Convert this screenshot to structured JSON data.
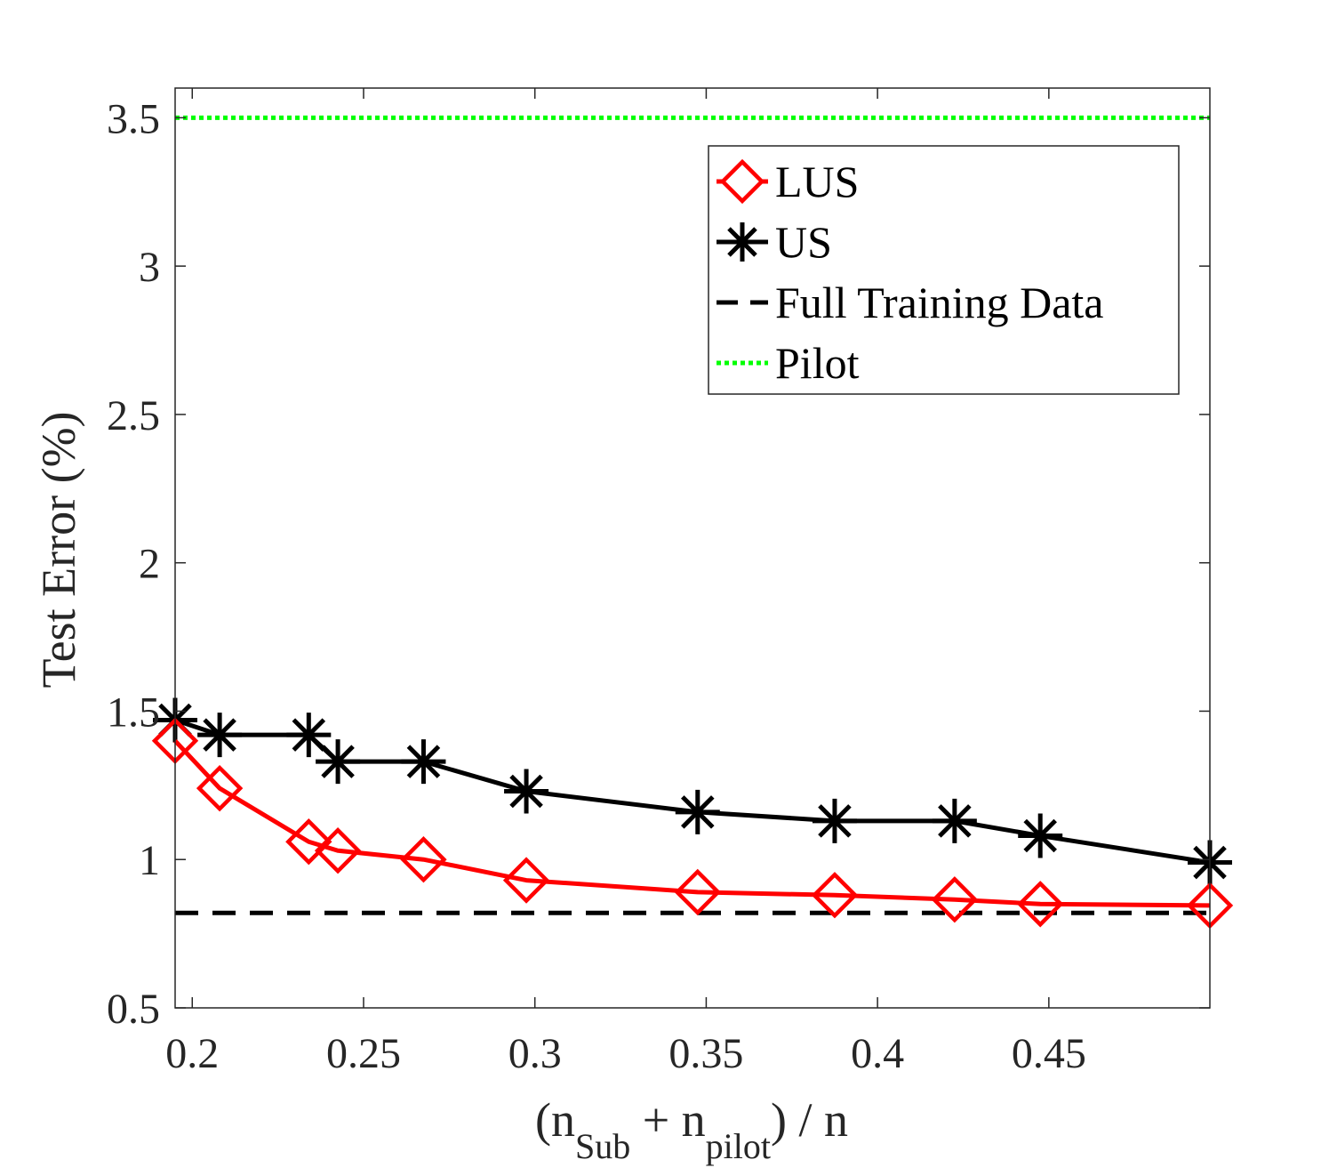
{
  "chart_data": {
    "type": "line",
    "title": "",
    "xlabel": {
      "open": "(n",
      "sub1": "Sub",
      "plus": " + n",
      "sub2": "pilot",
      "close": ") / n"
    },
    "ylabel": "Test Error (%)",
    "xlim": [
      0.195,
      0.497
    ],
    "ylim": [
      0.5,
      3.6
    ],
    "xticks": [
      0.2,
      0.25,
      0.3,
      0.35,
      0.4,
      0.45
    ],
    "xtick_labels": [
      "0.2",
      "0.25",
      "0.3",
      "0.35",
      "0.4",
      "0.45"
    ],
    "yticks": [
      0.5,
      1,
      1.5,
      2,
      2.5,
      3,
      3.5
    ],
    "ytick_labels": [
      "0.5",
      "1",
      "1.5",
      "2",
      "2.5",
      "3",
      "3.5"
    ],
    "legend_position": "top-right",
    "series": [
      {
        "name": "LUS",
        "style": "solid",
        "marker": "diamond",
        "color": "#ff0000",
        "x": [
          0.195,
          0.208,
          0.234,
          0.2425,
          0.2675,
          0.2975,
          0.3475,
          0.3875,
          0.4225,
          0.4475,
          0.497
        ],
        "y": [
          1.4,
          1.24,
          1.06,
          1.03,
          1.0,
          0.93,
          0.89,
          0.88,
          0.865,
          0.85,
          0.845
        ]
      },
      {
        "name": "US",
        "style": "solid",
        "marker": "asterisk",
        "color": "#000000",
        "x": [
          0.195,
          0.208,
          0.234,
          0.2425,
          0.2675,
          0.2975,
          0.3475,
          0.3875,
          0.4225,
          0.4475,
          0.497
        ],
        "y": [
          1.47,
          1.42,
          1.42,
          1.33,
          1.33,
          1.23,
          1.16,
          1.13,
          1.13,
          1.08,
          0.99
        ]
      },
      {
        "name": "Full Training Data",
        "style": "dashed",
        "marker": "none",
        "color": "#000000",
        "y_const": 0.82
      },
      {
        "name": "Pilot",
        "style": "dotted",
        "marker": "none",
        "color": "#00ff00",
        "y_const": 3.5
      }
    ]
  }
}
